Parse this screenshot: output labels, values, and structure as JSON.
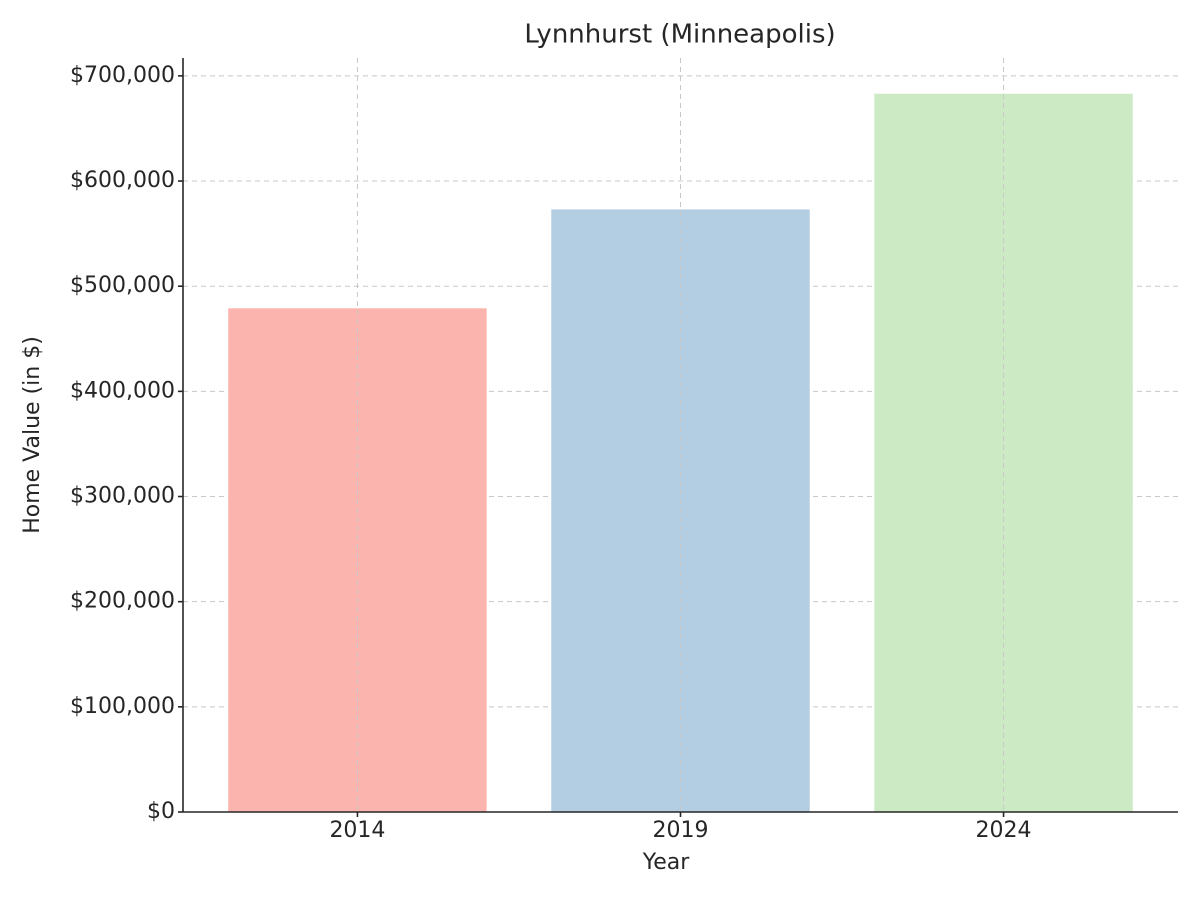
{
  "chart_data": {
    "type": "bar",
    "title": "Lynnhurst (Minneapolis)",
    "xlabel": "Year",
    "ylabel": "Home Value (in $)",
    "categories": [
      "2014",
      "2019",
      "2024"
    ],
    "values": [
      479000,
      573000,
      683000
    ],
    "colors": [
      "#fbb4ae",
      "#b3cde3",
      "#ccebc5"
    ],
    "ylim": [
      0,
      717000
    ],
    "yticks": [
      {
        "value": 0,
        "label": "$0"
      },
      {
        "value": 100000,
        "label": "$100,000"
      },
      {
        "value": 200000,
        "label": "$200,000"
      },
      {
        "value": 300000,
        "label": "$300,000"
      },
      {
        "value": 400000,
        "label": "$400,000"
      },
      {
        "value": 500000,
        "label": "$500,000"
      },
      {
        "value": 600000,
        "label": "$600,000"
      },
      {
        "value": 700000,
        "label": "$700,000"
      }
    ],
    "grid": true
  }
}
